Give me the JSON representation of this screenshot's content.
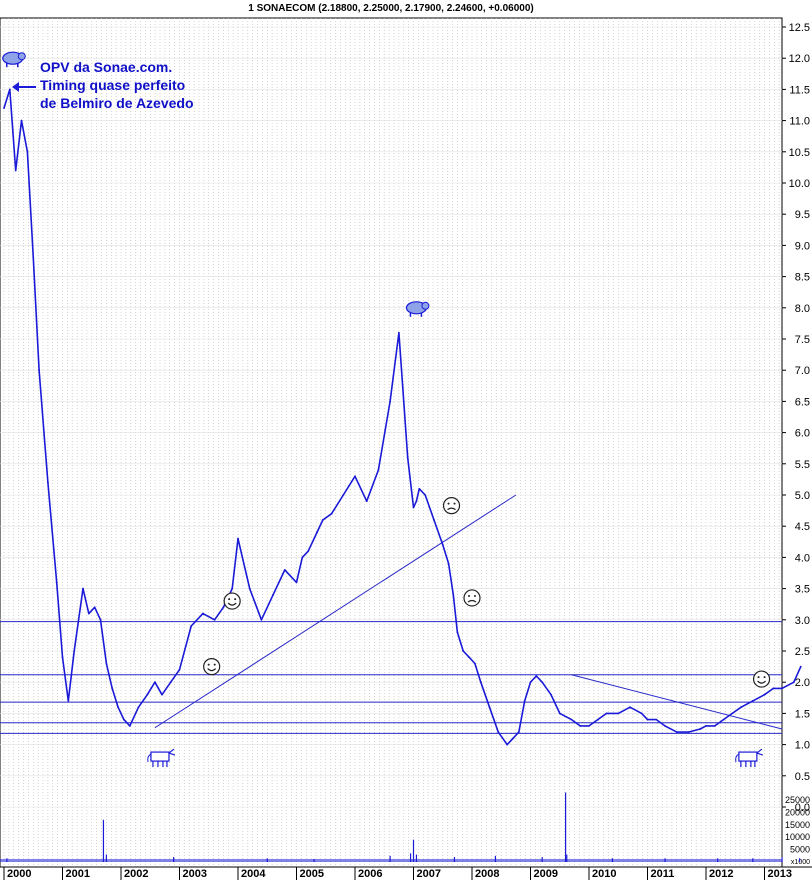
{
  "chart_data": {
    "type": "line",
    "title": "1 SONAECOM (2.18800, 2.25000, 2.17900, 2.24600, +0.06000)",
    "annotation": [
      "OPV da Sonae.com.",
      "Timing quase perfeito",
      "de Belmiro de Azevedo"
    ],
    "price_axis": {
      "ylim": [
        0.0,
        12.5
      ],
      "ticks": [
        "12.5",
        "12.0",
        "11.5",
        "11.0",
        "10.5",
        "10.0",
        "9.5",
        "9.0",
        "8.5",
        "8.0",
        "7.5",
        "7.0",
        "6.5",
        "6.0",
        "5.5",
        "5.0",
        "4.5",
        "4.0",
        "3.5",
        "3.0",
        "2.5",
        "2.0",
        "1.5",
        "1.0",
        "0.5",
        "0.0"
      ]
    },
    "volume_axis": {
      "ticks": [
        "25000",
        "20000",
        "15000",
        "10000",
        "5000"
      ],
      "multiplier": "x1000"
    },
    "x_labels": [
      "2000",
      "2001",
      "2002",
      "2003",
      "2004",
      "2005",
      "2006",
      "2007",
      "2008",
      "2009",
      "2010",
      "2011",
      "2012",
      "2013"
    ],
    "grid": true,
    "series": [
      {
        "x": [
          2000.0,
          2000.1,
          2000.2,
          2000.3,
          2000.4,
          2000.5,
          2000.6,
          2000.75,
          2000.9,
          2001.0,
          2001.1,
          2001.2,
          2001.35,
          2001.45,
          2001.55,
          2001.65,
          2001.75,
          2001.85,
          2001.95,
          2002.05,
          2002.15,
          2002.3,
          2002.45,
          2002.58,
          2002.7,
          2002.85,
          2003.0,
          2003.2,
          2003.4,
          2003.6,
          2003.75,
          2003.9,
          2004.0,
          2004.2,
          2004.4,
          2004.6,
          2004.8,
          2005.0,
          2005.1,
          2005.2,
          2005.35,
          2005.45,
          2005.6,
          2005.8,
          2006.0,
          2006.2,
          2006.4,
          2006.6,
          2006.75,
          2006.9,
          2007.0,
          2007.05,
          2007.1,
          2007.2,
          2007.35,
          2007.5,
          2007.6,
          2007.68,
          2007.75,
          2007.85,
          2007.95,
          2008.05,
          2008.15,
          2008.3,
          2008.45,
          2008.6,
          2008.7,
          2008.8,
          2008.9,
          2009.0,
          2009.1,
          2009.2,
          2009.35,
          2009.5,
          2009.7,
          2009.85,
          2010.0,
          2010.15,
          2010.3,
          2010.5,
          2010.7,
          2010.9,
          2011.0,
          2011.15,
          2011.3,
          2011.5,
          2011.7,
          2011.9,
          2012.0,
          2012.15,
          2012.3,
          2012.45,
          2012.6,
          2012.8,
          2013.0,
          2013.15,
          2013.3,
          2013.5,
          2013.62
        ],
        "y": [
          11.2,
          11.5,
          10.2,
          11.0,
          10.5,
          8.8,
          7.0,
          5.2,
          3.6,
          2.4,
          1.7,
          2.5,
          3.5,
          3.1,
          3.2,
          3.0,
          2.3,
          1.9,
          1.6,
          1.4,
          1.3,
          1.6,
          1.8,
          2.0,
          1.8,
          2.0,
          2.2,
          2.9,
          3.1,
          3.0,
          3.2,
          3.5,
          4.3,
          3.5,
          3.0,
          3.4,
          3.8,
          3.6,
          4.0,
          4.1,
          4.4,
          4.6,
          4.7,
          5.0,
          5.3,
          4.9,
          5.4,
          6.5,
          7.6,
          5.6,
          4.8,
          4.9,
          5.1,
          5.0,
          4.6,
          4.2,
          3.9,
          3.4,
          2.8,
          2.5,
          2.4,
          2.3,
          2.0,
          1.6,
          1.2,
          1.0,
          1.1,
          1.2,
          1.7,
          2.0,
          2.1,
          2.0,
          1.8,
          1.5,
          1.4,
          1.3,
          1.3,
          1.4,
          1.5,
          1.5,
          1.6,
          1.5,
          1.4,
          1.4,
          1.3,
          1.2,
          1.2,
          1.25,
          1.3,
          1.3,
          1.4,
          1.5,
          1.6,
          1.7,
          1.8,
          1.9,
          1.9,
          2.0,
          2.25
        ]
      }
    ],
    "volume": {
      "x": [
        2000.05,
        2001.7,
        2001.75,
        2002.9,
        2004.5,
        2005.3,
        2006.6,
        2006.95,
        2007.0,
        2007.05,
        2007.7,
        2008.4,
        2009.2,
        2009.6,
        2009.62,
        2010.4,
        2011.3,
        2012.2,
        2012.8,
        2013.3,
        2013.6
      ],
      "y": [
        1500,
        17000,
        3000,
        2000,
        1500,
        1200,
        2500,
        3500,
        9000,
        3000,
        2000,
        2500,
        2000,
        28000,
        3000,
        1500,
        1500,
        1500,
        1500,
        2000,
        1500
      ]
    },
    "horizontal_lines": [
      2.97,
      2.12,
      1.68,
      1.35,
      1.18
    ],
    "trend_lines": [
      {
        "from": [
          2002.58,
          1.27
        ],
        "to": [
          2008.75,
          5.0
        ]
      },
      {
        "from": [
          2009.7,
          2.12
        ],
        "to": [
          2013.3,
          1.25
        ]
      }
    ],
    "markers": [
      {
        "icon": "bear-icon",
        "x": 2000.15,
        "y": 12.0
      },
      {
        "icon": "bear-icon",
        "x": 2007.05,
        "y": 8.0
      },
      {
        "icon": "bull-icon",
        "x": 2002.7,
        "y": 0.8
      },
      {
        "icon": "bull-icon",
        "x": 2012.75,
        "y": 0.8
      },
      {
        "icon": "smiley-icon",
        "x": 2003.55,
        "y": 2.25
      },
      {
        "icon": "smiley-icon",
        "x": 2003.9,
        "y": 3.3
      },
      {
        "icon": "smiley-icon",
        "x": 2012.95,
        "y": 2.05
      },
      {
        "icon": "frown-icon",
        "x": 2007.65,
        "y": 4.83
      },
      {
        "icon": "frown-icon",
        "x": 2008.0,
        "y": 3.35
      }
    ],
    "colors": {
      "price": "#1a1ad8",
      "lines": "#2828c8",
      "grid": "#b8b8b8",
      "icons": "#1a1ad8"
    }
  }
}
